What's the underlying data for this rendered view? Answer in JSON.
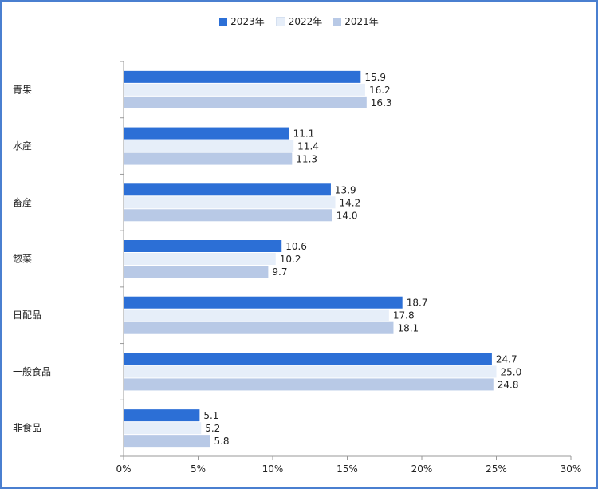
{
  "chart_data": {
    "type": "bar",
    "orientation": "horizontal",
    "categories": [
      "青果",
      "水産",
      "畜産",
      "惣菜",
      "日配品",
      "一般食品",
      "非食品"
    ],
    "series": [
      {
        "name": "2023年",
        "color": "#2c6fd6",
        "values": [
          15.9,
          11.1,
          13.9,
          10.6,
          18.7,
          24.7,
          5.1
        ]
      },
      {
        "name": "2022年",
        "color": "#e6eef9",
        "values": [
          16.2,
          11.4,
          14.2,
          10.2,
          17.8,
          25.0,
          5.2
        ]
      },
      {
        "name": "2021年",
        "color": "#b8c9e6",
        "values": [
          16.3,
          11.3,
          14.0,
          9.7,
          18.1,
          24.8,
          5.8
        ]
      }
    ],
    "data_labels": [
      [
        "15.9",
        "11.1",
        "13.9",
        "10.6",
        "18.7",
        "24.7",
        "5.1"
      ],
      [
        "16.2",
        "11.4",
        "14.2",
        "10.2",
        "17.8",
        "25.0",
        "5.2"
      ],
      [
        "16.3",
        "11.3",
        "14.0",
        "9.7",
        "18.1",
        "24.8",
        "5.8"
      ]
    ],
    "xlim": [
      0,
      30
    ],
    "xticks": [
      0,
      5,
      10,
      15,
      20,
      25,
      30
    ],
    "xtick_labels": [
      "0%",
      "5%",
      "10%",
      "15%",
      "20%",
      "25%",
      "30%"
    ],
    "legend_position": "top-center",
    "grid": false
  }
}
